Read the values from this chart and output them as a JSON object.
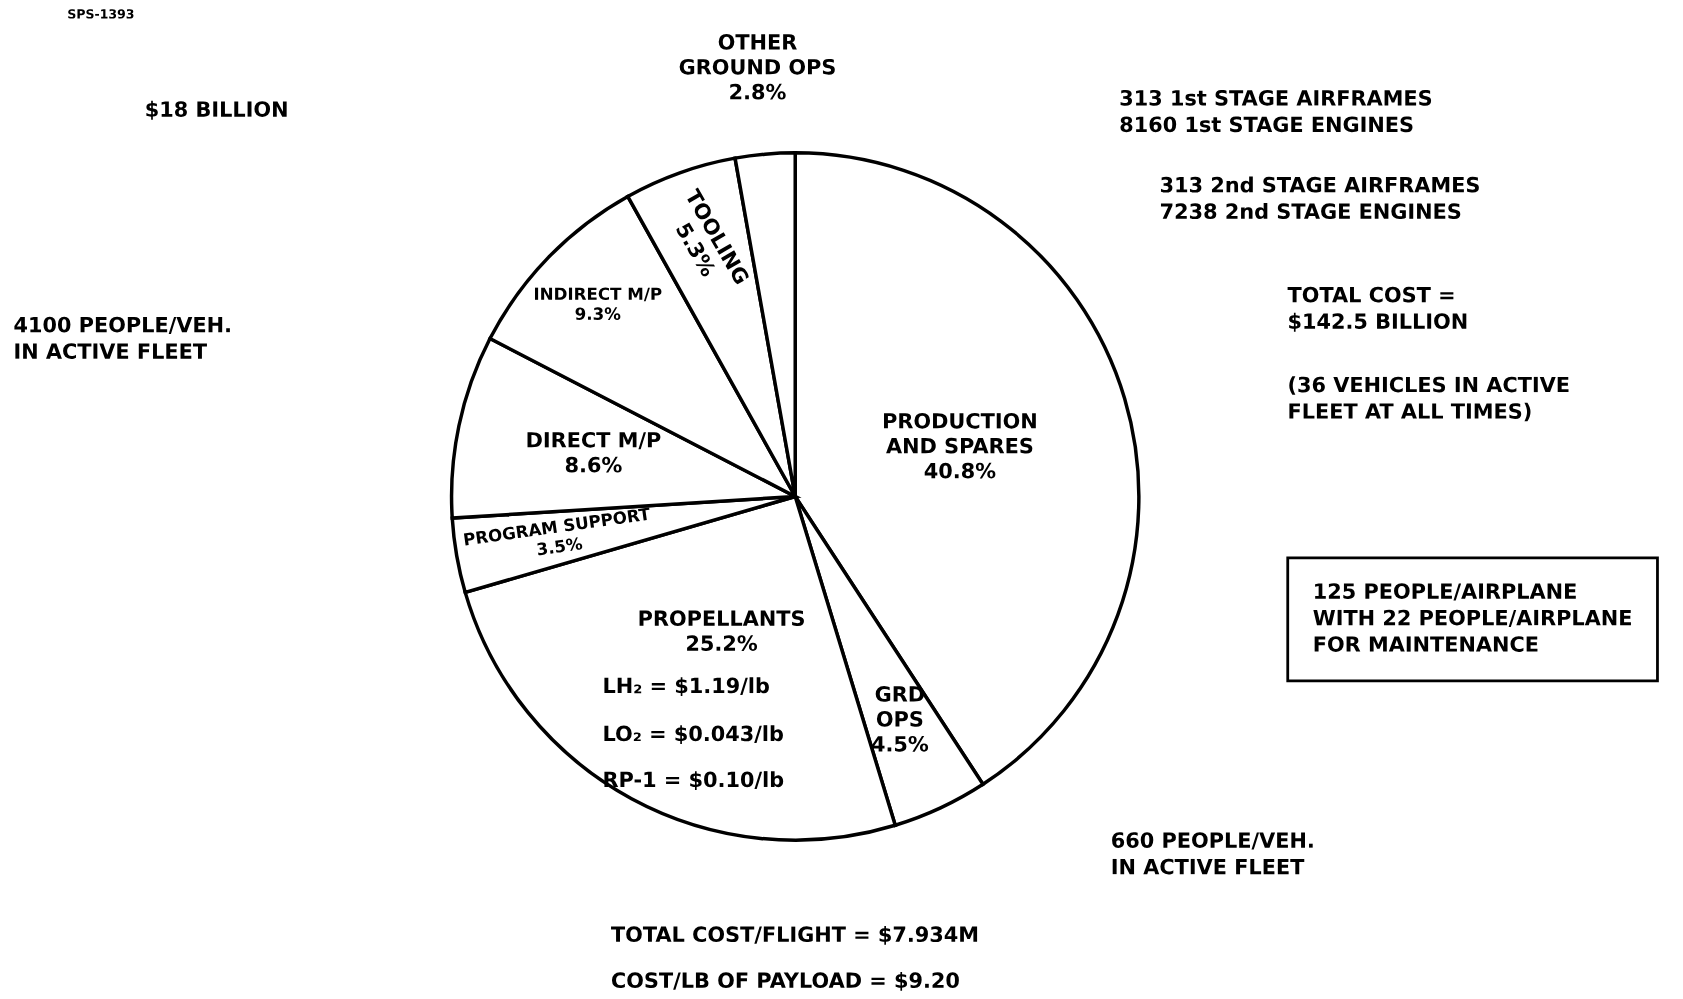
{
  "chart_data": {
    "type": "pie",
    "categories": [
      "PRODUCTION\nAND SPARES",
      "GRD\nOPS",
      "PROPELLANTS",
      "PROGRAM SUPPORT",
      "DIRECT M/P",
      "INDIRECT M/P",
      "TOOLING",
      "OTHER\nGROUND OPS"
    ],
    "values": [
      40.8,
      4.5,
      25.2,
      3.5,
      8.6,
      9.3,
      5.3,
      2.8
    ],
    "value_labels": [
      "40.8%",
      "4.5%",
      "25.2%",
      "3.5%",
      "8.6%",
      "9.3%",
      "5.3%",
      "2.8%"
    ],
    "colors": [
      "#ffffff",
      "#ffffff",
      "#ffffff",
      "#ffffff",
      "#ffffff",
      "#ffffff",
      "#ffffff",
      "#ffffff"
    ],
    "annotations": [
      "SPS-1393",
      "$18 BILLION",
      "4100 PEOPLE/VEH.\nIN ACTIVE FLEET",
      "313 1st STAGE AIRFRAMES\n8160 1st STAGE ENGINES",
      "313 2nd STAGE AIRFRAMES\n7238 2nd STAGE ENGINES",
      "TOTAL COST =\n$142.5 BILLION",
      "(36 VEHICLES IN ACTIVE\nFLEET AT ALL TIMES)",
      "125 PEOPLE/AIRPLANE\nWITH 22 PEOPLE/AIRPLANE\nFOR MAINTENANCE",
      "LH₂ = $1.19/lb",
      "LO₂ = $0.043/lb",
      "RP-1 = $0.10/lb",
      "660 PEOPLE/VEH.\nIN ACTIVE FLEET",
      "TOTAL COST/FLIGHT = $7.934M",
      "COST/LB OF PAYLOAD = $9.20"
    ]
  }
}
